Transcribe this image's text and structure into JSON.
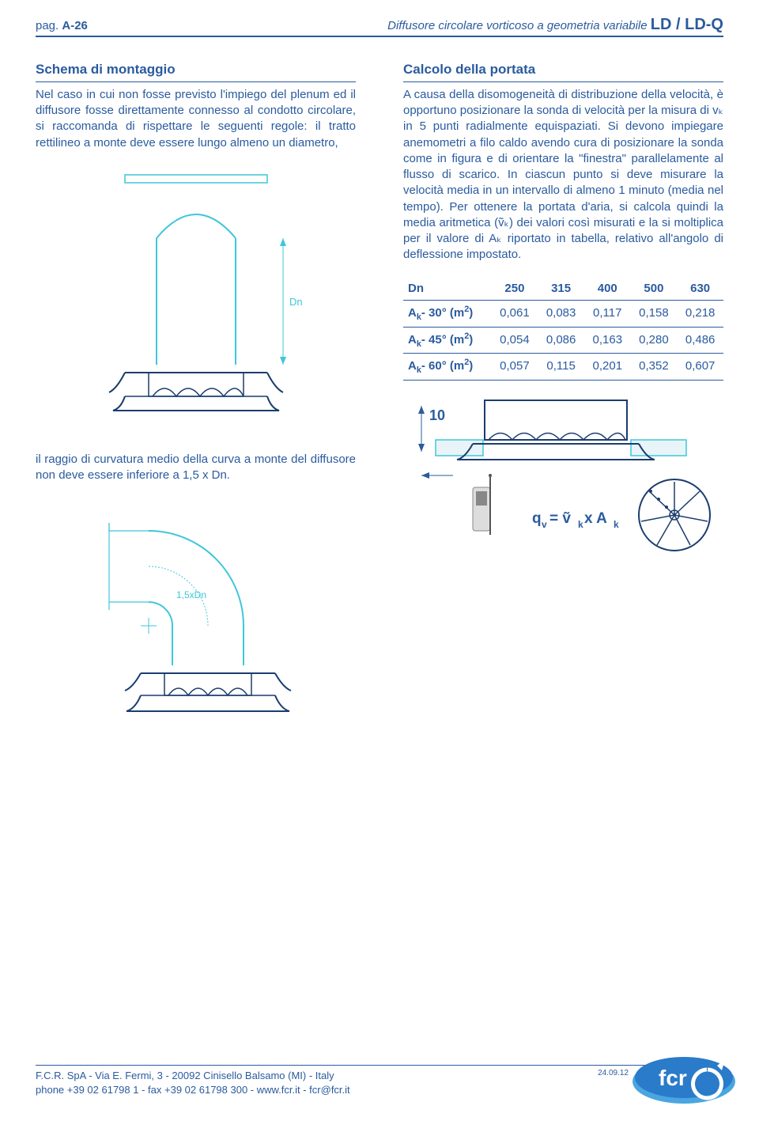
{
  "header": {
    "page_prefix": "pag. ",
    "page_num": "A-26",
    "title_italic": "Diffusore circolare vorticoso a geometria variabile ",
    "title_code": "LD / LD-Q"
  },
  "left": {
    "section_title": "Schema di montaggio",
    "para1": "Nel caso in cui non fosse previsto l'impiego del plenum ed il diffusore fosse direttamente connesso al condotto circolare, si raccomanda di rispettare le seguenti regole: il tratto rettilineo a monte deve essere lungo almeno un diametro,",
    "para2": "il raggio di curvatura medio della curva a monte del diffusore non deve essere inferiore a 1,5 x Dn.",
    "dim_label1": "Dn",
    "dim_label2": "1,5xDn"
  },
  "right": {
    "section_title": "Calcolo della portata",
    "para1": "A causa della disomogeneità di distribuzione della velocità, è opportuno posizionare la sonda di velocità per la misura di vₖ in 5 punti radialmente equispaziati. Si devono impiegare anemometri a filo caldo avendo cura di posizionare la sonda come in figura e di orientare la \"finestra\" parallelamente al flusso di scarico. In ciascun punto si deve misurare la velocità media in un intervallo di almeno 1 minuto (media nel tempo). Per ottenere la portata d'aria, si calcola quindi la media aritmetica (ṽₖ) dei valori così misurati e la si moltiplica per il valore di Aₖ riportato in tabella, relativo all'angolo di deflessione impostato.",
    "table": {
      "headers": [
        "Dn",
        "250",
        "315",
        "400",
        "500",
        "630"
      ],
      "rows": [
        [
          "Aₖ- 30° (m²)",
          "0,061",
          "0,083",
          "0,117",
          "0,158",
          "0,218"
        ],
        [
          "Aₖ- 45° (m²)",
          "0,054",
          "0,086",
          "0,163",
          "0,280",
          "0,486"
        ],
        [
          "Aₖ- 60° (m²)",
          "0,057",
          "0,115",
          "0,201",
          "0,352",
          "0,607"
        ]
      ]
    },
    "dim_ten": "10",
    "formula": "qᵥ = ṽₖ x Aₖ"
  },
  "footer": {
    "line1": "F.C.R. SpA - Via E. Fermi, 3 - 20092 Cinisello Balsamo (MI) - Italy",
    "line2": "phone +39 02 61798 1 - fax +39 02 61798 300 - www.fcr.it - fcr@fcr.it",
    "date": "24.09.12"
  },
  "colors": {
    "brand": "#2a5b9e",
    "cyan": "#3fc7d9",
    "navy": "#1b3d6e"
  }
}
